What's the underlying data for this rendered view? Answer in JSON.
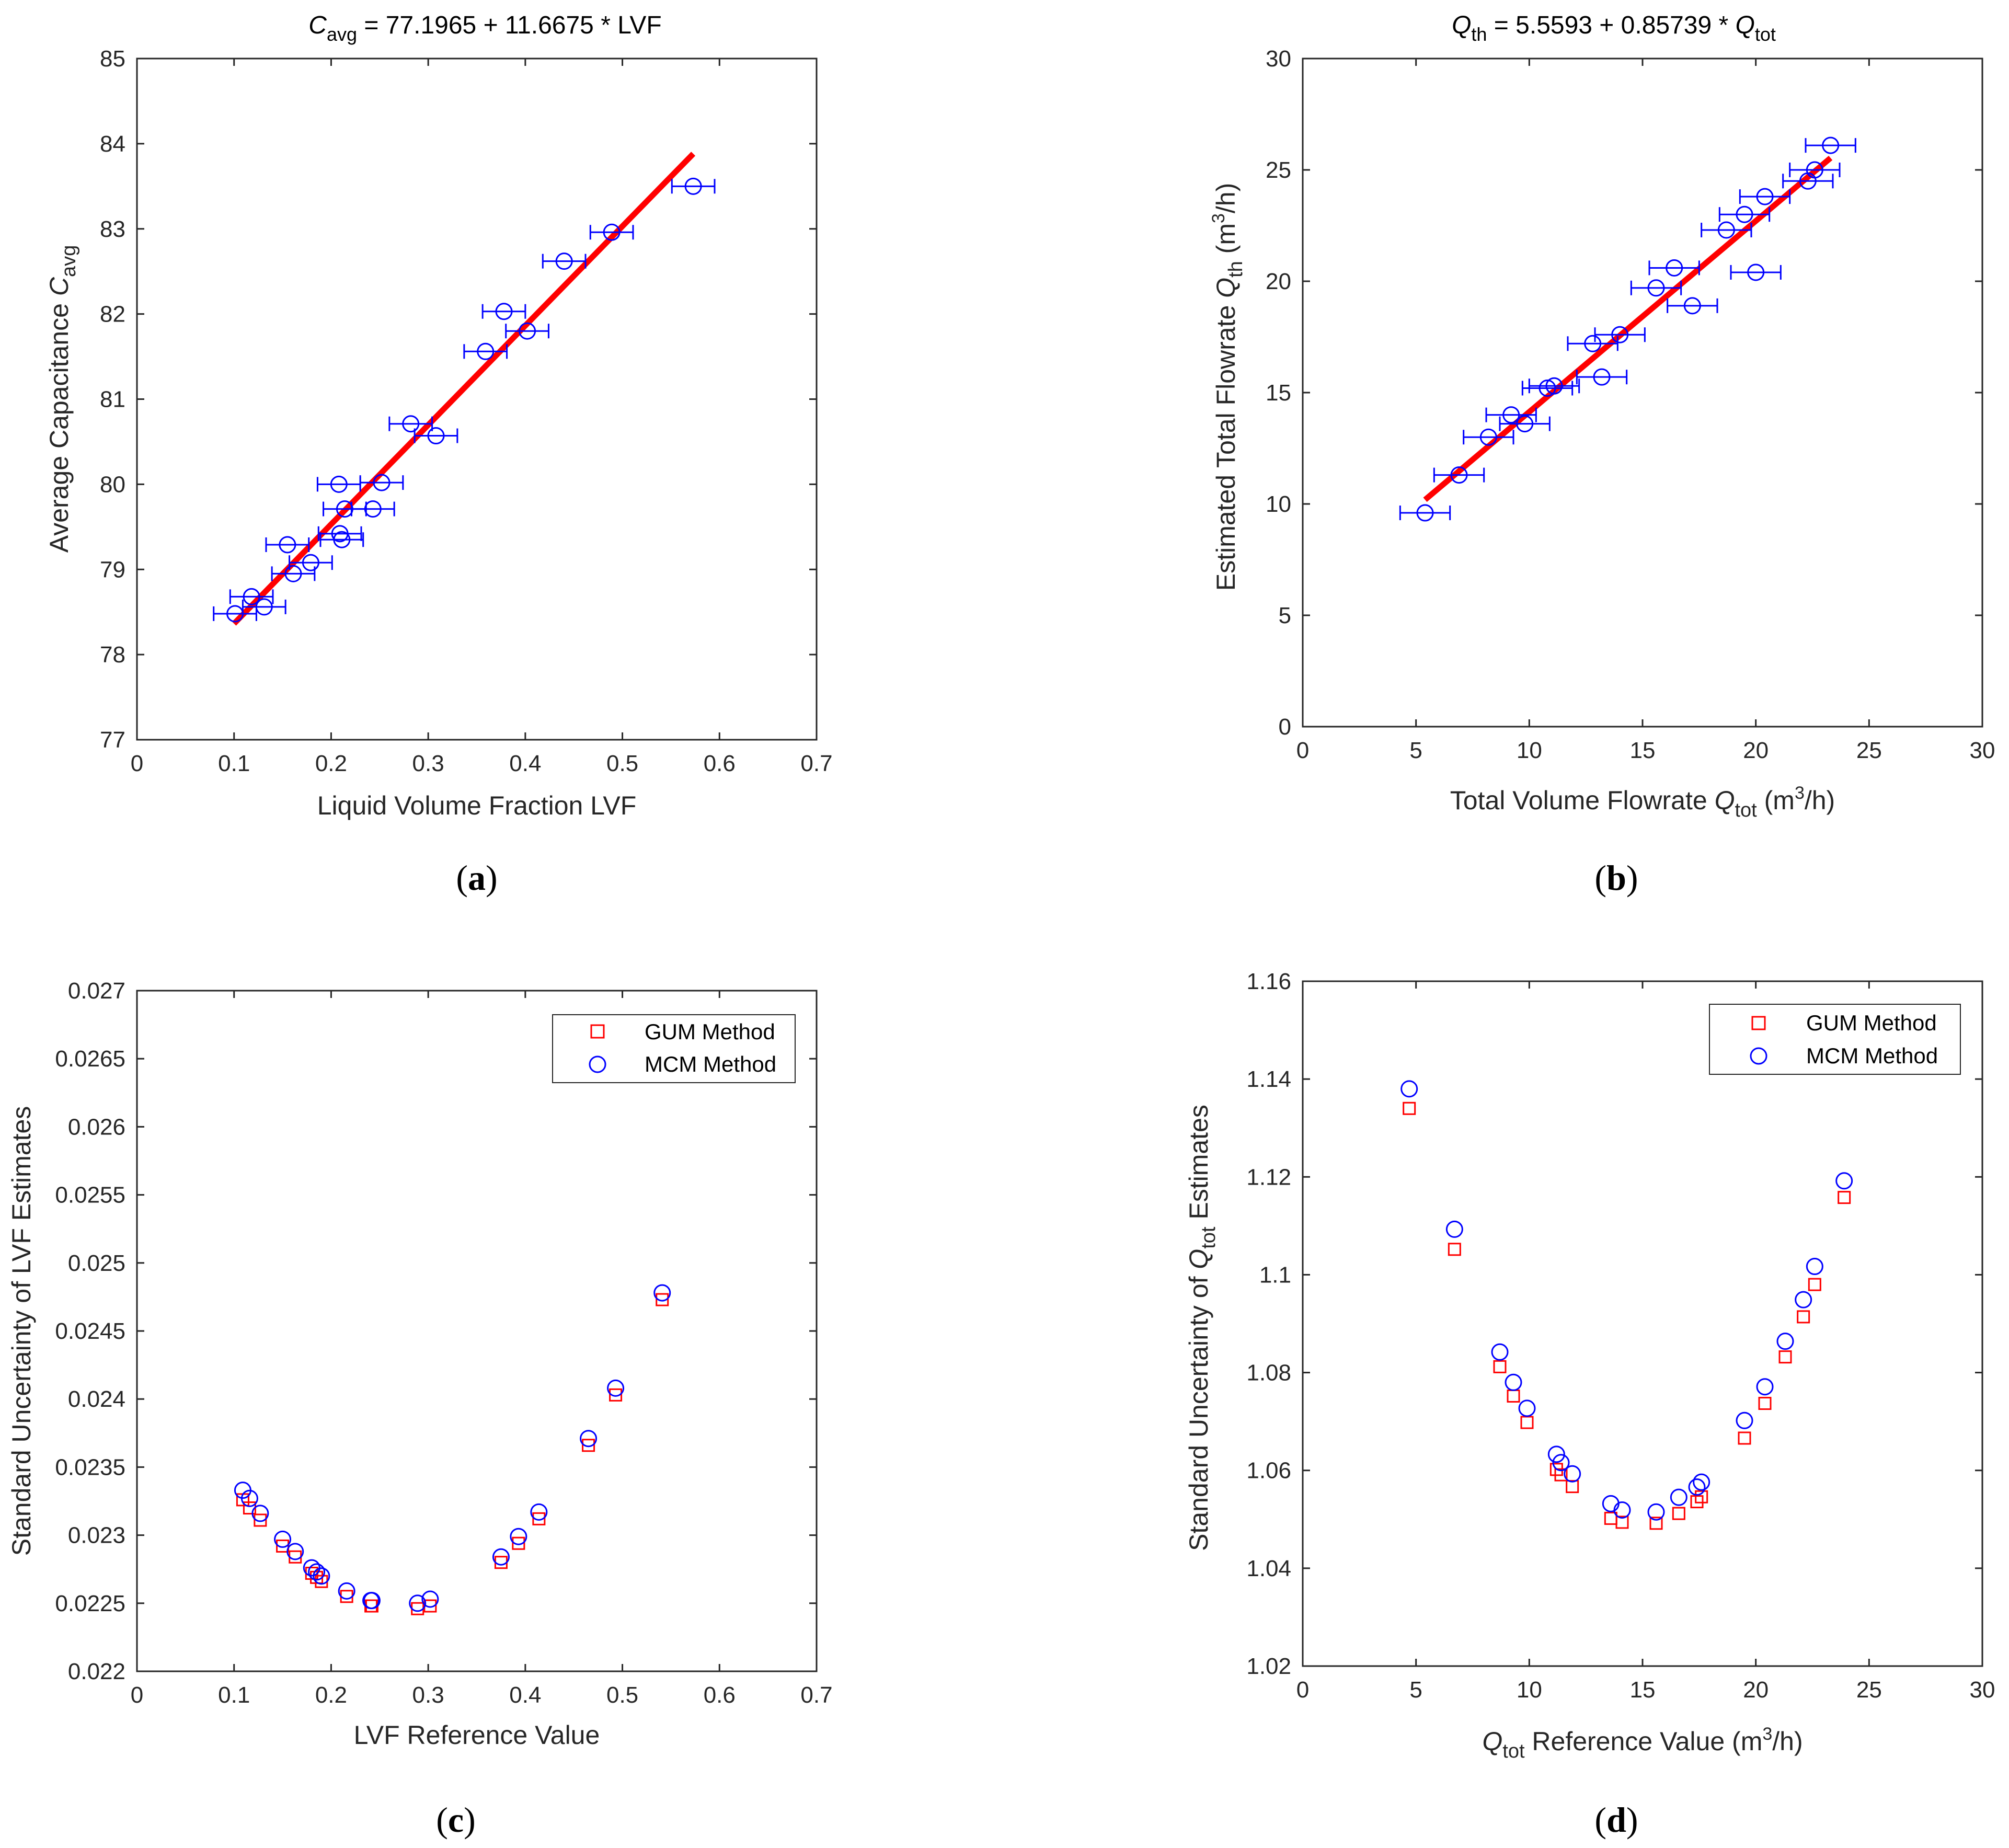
{
  "colors": {
    "marker_blue": "#0000ff",
    "fit_red": "#ff0000",
    "gum_red": "#ff0000",
    "axis": "#262626"
  },
  "chart_data": [
    {
      "panel": "(a)",
      "type": "scatter",
      "title_text": "C avg = 77.1965 + 11.6675 * LVF",
      "title_parts": {
        "base": "C",
        "sub": "avg",
        "rest": " = 77.1965 + 11.6675 * LVF"
      },
      "xlabel": "Liquid Volume Fraction LVF",
      "ylabel_parts": {
        "base": "Average Capacitance ",
        "var": "C",
        "sub": "avg"
      },
      "ylabel_text": "Average Capacitance C avg",
      "xlim": [
        0,
        0.7
      ],
      "ylim": [
        77,
        85
      ],
      "xticks": [
        0,
        0.1,
        0.2,
        0.3,
        0.4,
        0.5,
        0.6,
        0.7
      ],
      "xtick_labels": [
        "0",
        "0.1",
        "0.2",
        "0.3",
        "0.4",
        "0.5",
        "0.6",
        "0.7"
      ],
      "yticks": [
        77,
        78,
        79,
        80,
        81,
        82,
        83,
        84,
        85
      ],
      "ytick_labels": [
        "77",
        "78",
        "79",
        "80",
        "81",
        "82",
        "83",
        "84",
        "85"
      ],
      "x_error": 0.022,
      "points": [
        {
          "x": 0.101,
          "y": 78.48
        },
        {
          "x": 0.131,
          "y": 78.56
        },
        {
          "x": 0.118,
          "y": 78.68
        },
        {
          "x": 0.161,
          "y": 78.95
        },
        {
          "x": 0.179,
          "y": 79.08
        },
        {
          "x": 0.155,
          "y": 79.29
        },
        {
          "x": 0.211,
          "y": 79.35
        },
        {
          "x": 0.209,
          "y": 79.42
        },
        {
          "x": 0.214,
          "y": 79.71
        },
        {
          "x": 0.243,
          "y": 79.71
        },
        {
          "x": 0.208,
          "y": 80.0
        },
        {
          "x": 0.252,
          "y": 80.02
        },
        {
          "x": 0.308,
          "y": 80.57
        },
        {
          "x": 0.282,
          "y": 80.71
        },
        {
          "x": 0.359,
          "y": 81.56
        },
        {
          "x": 0.402,
          "y": 81.8
        },
        {
          "x": 0.378,
          "y": 82.03
        },
        {
          "x": 0.44,
          "y": 82.62
        },
        {
          "x": 0.489,
          "y": 82.96
        },
        {
          "x": 0.573,
          "y": 83.5
        }
      ],
      "fit": {
        "intercept": 77.1965,
        "slope": 11.6675,
        "x_range": [
          0.1,
          0.573
        ]
      }
    },
    {
      "panel": "(b)",
      "type": "scatter",
      "title_text": "Q th = 5.5593 + 0.85739 * Q tot",
      "title_parts": {
        "base": "Q",
        "sub": "th",
        "mid": " = 5.5593 + 0.85739 * ",
        "base2": "Q",
        "sub2": "tot"
      },
      "xlabel_text": "Total Volume Flowrate Q tot (m3/h)",
      "xlabel_parts": {
        "base": "Total Volume Flowrate  ",
        "var": "Q",
        "sub": "tot",
        "unit1": " (m",
        "sup": "3",
        "unit2": "/h)"
      },
      "ylabel_text": "Estimated Total Flowrate Q th (m3/h)",
      "ylabel_parts": {
        "base": "Estimated Total Flowrate  ",
        "var": "Q",
        "sub": "th",
        "unit1": " (m",
        "sup": "3",
        "unit2": "/h)"
      },
      "xlim": [
        0,
        30
      ],
      "ylim": [
        0,
        30
      ],
      "xticks": [
        0,
        5,
        10,
        15,
        20,
        25,
        30
      ],
      "xtick_labels": [
        "0",
        "5",
        "10",
        "15",
        "20",
        "25",
        "30"
      ],
      "yticks": [
        0,
        5,
        10,
        15,
        20,
        25,
        30
      ],
      "ytick_labels": [
        "0",
        "5",
        "10",
        "15",
        "20",
        "25",
        "30"
      ],
      "x_error": 1.1,
      "points": [
        {
          "x": 5.4,
          "y": 9.6
        },
        {
          "x": 6.9,
          "y": 11.3
        },
        {
          "x": 8.2,
          "y": 13.0
        },
        {
          "x": 9.2,
          "y": 14.0
        },
        {
          "x": 9.8,
          "y": 13.6
        },
        {
          "x": 10.8,
          "y": 15.2
        },
        {
          "x": 11.1,
          "y": 15.3
        },
        {
          "x": 12.8,
          "y": 17.2
        },
        {
          "x": 13.2,
          "y": 15.7
        },
        {
          "x": 14.0,
          "y": 17.6
        },
        {
          "x": 15.6,
          "y": 19.7
        },
        {
          "x": 16.4,
          "y": 20.6
        },
        {
          "x": 17.2,
          "y": 18.9
        },
        {
          "x": 18.7,
          "y": 22.3
        },
        {
          "x": 19.5,
          "y": 23.0
        },
        {
          "x": 20.4,
          "y": 23.8
        },
        {
          "x": 20.0,
          "y": 20.4
        },
        {
          "x": 22.3,
          "y": 24.5
        },
        {
          "x": 22.6,
          "y": 25.0
        },
        {
          "x": 23.3,
          "y": 26.1
        }
      ],
      "fit": {
        "intercept": 5.5593,
        "slope": 0.85739,
        "x_range": [
          5.4,
          23.3
        ]
      }
    },
    {
      "panel": "(c)",
      "type": "scatter",
      "xlabel": "LVF Reference Value",
      "ylabel": "Standard Uncertainty of LVF Estimates",
      "xlim": [
        0,
        0.7
      ],
      "ylim": [
        0.022,
        0.027
      ],
      "xticks": [
        0,
        0.1,
        0.2,
        0.3,
        0.4,
        0.5,
        0.6,
        0.7
      ],
      "xtick_labels": [
        "0",
        "0.1",
        "0.2",
        "0.3",
        "0.4",
        "0.5",
        "0.6",
        "0.7"
      ],
      "yticks": [
        0.022,
        0.0225,
        0.023,
        0.0235,
        0.024,
        0.0245,
        0.025,
        0.0255,
        0.026,
        0.0265,
        0.027
      ],
      "ytick_labels": [
        "0.022",
        "0.0225",
        "0.023",
        "0.0235",
        "0.024",
        "0.0245",
        "0.025",
        "0.0255",
        "0.026",
        "0.0265",
        "0.027"
      ],
      "legend": {
        "position": "top-right",
        "entries": [
          "GUM Method",
          "MCM Method"
        ]
      },
      "series": [
        {
          "name": "GUM Method",
          "marker": "square",
          "x": [
            0.109,
            0.116,
            0.127,
            0.15,
            0.163,
            0.18,
            0.185,
            0.19,
            0.216,
            0.241,
            0.242,
            0.289,
            0.302,
            0.375,
            0.393,
            0.414,
            0.465,
            0.493,
            0.541
          ],
          "y": [
            0.02326,
            0.0232,
            0.02311,
            0.02292,
            0.02284,
            0.02272,
            0.02269,
            0.02266,
            0.02255,
            0.02248,
            0.02248,
            0.02246,
            0.02248,
            0.0228,
            0.02294,
            0.02312,
            0.02366,
            0.02403,
            0.02473
          ]
        },
        {
          "name": "MCM Method",
          "marker": "circle",
          "x": [
            0.109,
            0.116,
            0.127,
            0.15,
            0.163,
            0.18,
            0.185,
            0.19,
            0.216,
            0.241,
            0.242,
            0.289,
            0.302,
            0.375,
            0.393,
            0.414,
            0.465,
            0.493,
            0.541
          ],
          "y": [
            0.02333,
            0.02327,
            0.02316,
            0.02297,
            0.02288,
            0.02276,
            0.02273,
            0.0227,
            0.02259,
            0.02252,
            0.02252,
            0.0225,
            0.02253,
            0.02284,
            0.02299,
            0.02317,
            0.02371,
            0.02408,
            0.02478
          ]
        }
      ]
    },
    {
      "panel": "(d)",
      "type": "scatter",
      "xlabel_text": "Q tot Reference Value (m3/h)",
      "xlabel_parts": {
        "var": "Q",
        "sub": "tot",
        "base": " Reference Value (m",
        "sup": "3",
        "unit2": "/h)"
      },
      "ylabel_text": "Standard Uncertainty of Q tot Estimates",
      "ylabel_parts": {
        "base": "Standard Uncertainty of ",
        "var": "Q",
        "sub": "tot",
        "rest": " Estimates"
      },
      "xlim": [
        0,
        30
      ],
      "ylim": [
        1.02,
        1.16
      ],
      "xticks": [
        0,
        5,
        10,
        15,
        20,
        25,
        30
      ],
      "xtick_labels": [
        "0",
        "5",
        "10",
        "15",
        "20",
        "25",
        "30"
      ],
      "yticks": [
        1.02,
        1.04,
        1.06,
        1.08,
        1.1,
        1.12,
        1.14,
        1.16
      ],
      "ytick_labels": [
        "1.02",
        "1.04",
        "1.06",
        "1.08",
        "1.1",
        "1.12",
        "1.14",
        "1.16"
      ],
      "legend": {
        "position": "top-right",
        "entries": [
          "GUM Method",
          "MCM Method"
        ]
      },
      "series": [
        {
          "name": "GUM Method",
          "marker": "square",
          "x": [
            4.7,
            6.7,
            8.7,
            9.3,
            9.9,
            11.2,
            11.4,
            11.9,
            13.6,
            14.1,
            15.6,
            16.6,
            17.4,
            17.6,
            19.5,
            20.4,
            21.3,
            22.1,
            22.6,
            23.9
          ],
          "y": [
            1.134,
            1.1052,
            1.0812,
            1.0752,
            1.0698,
            1.0602,
            1.0591,
            1.0567,
            1.0502,
            1.0494,
            1.0492,
            1.0512,
            1.0536,
            1.0546,
            1.0666,
            1.0737,
            1.0832,
            1.0914,
            1.098,
            1.1158
          ]
        },
        {
          "name": "MCM Method",
          "marker": "circle",
          "x": [
            4.7,
            6.7,
            8.7,
            9.3,
            9.9,
            11.2,
            11.4,
            11.9,
            13.6,
            14.1,
            15.6,
            16.6,
            17.4,
            17.6,
            19.5,
            20.4,
            21.3,
            22.1,
            22.6,
            23.9
          ],
          "y": [
            1.138,
            1.1093,
            1.0842,
            1.078,
            1.0727,
            1.0633,
            1.0616,
            1.0593,
            1.0532,
            1.0519,
            1.0515,
            1.0545,
            1.0566,
            1.0576,
            1.0702,
            1.0771,
            1.0864,
            1.0949,
            1.1017,
            1.1192
          ]
        }
      ]
    }
  ]
}
